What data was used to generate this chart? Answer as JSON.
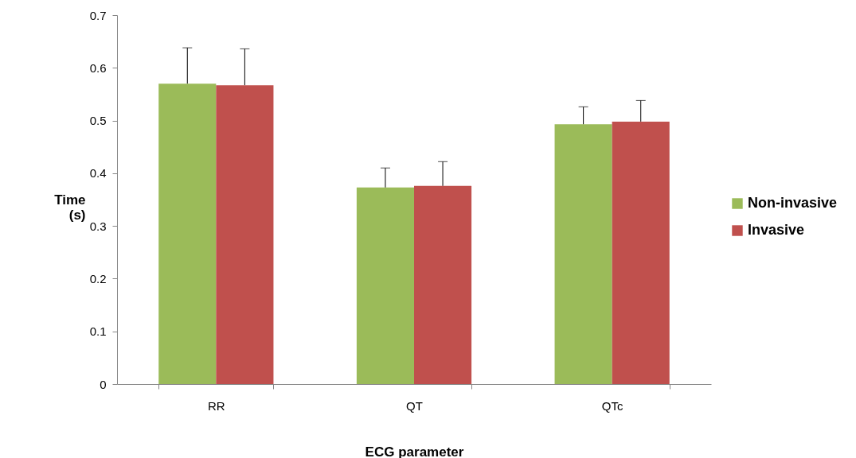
{
  "chart_data": {
    "type": "bar",
    "xlabel": "ECG parameter",
    "ylabel": "Time (s)",
    "categories": [
      "RR",
      "QT",
      "QTc"
    ],
    "series": [
      {
        "name": "Non-invasive",
        "color": "#9bbb59",
        "values": [
          0.57,
          0.373,
          0.493
        ],
        "errors": [
          [
            0.57,
            0.638
          ],
          [
            0.373,
            0.41
          ],
          [
            0.493,
            0.526
          ]
        ]
      },
      {
        "name": "Invasive",
        "color": "#c0504d",
        "values": [
          0.567,
          0.376,
          0.498
        ],
        "errors": [
          [
            0.567,
            0.636
          ],
          [
            0.376,
            0.422
          ],
          [
            0.498,
            0.538
          ]
        ]
      }
    ],
    "ylim": [
      0,
      0.7
    ],
    "yticks": [
      0,
      0.1,
      0.2,
      0.3,
      0.4,
      0.5,
      0.6,
      0.7
    ],
    "grid": false,
    "legend": "right"
  }
}
